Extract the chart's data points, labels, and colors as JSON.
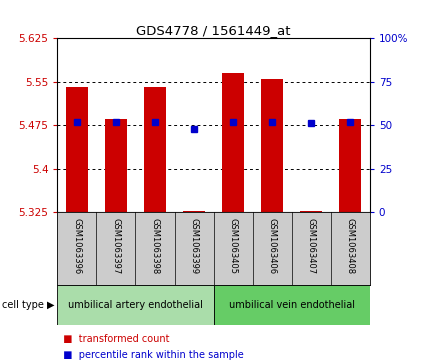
{
  "title": "GDS4778 / 1561449_at",
  "samples": [
    "GSM1063396",
    "GSM1063397",
    "GSM1063398",
    "GSM1063399",
    "GSM1063405",
    "GSM1063406",
    "GSM1063407",
    "GSM1063408"
  ],
  "red_values": [
    5.54,
    5.485,
    5.54,
    5.327,
    5.565,
    5.555,
    5.327,
    5.485
  ],
  "blue_percentile": [
    52,
    52,
    52,
    48,
    52,
    52,
    51,
    52
  ],
  "ymin": 5.325,
  "ymax": 5.625,
  "y_ticks": [
    5.325,
    5.4,
    5.475,
    5.55,
    5.625
  ],
  "y_tick_labels": [
    "5.325",
    "5.4",
    "5.475",
    "5.55",
    "5.625"
  ],
  "right_ticks": [
    0,
    25,
    50,
    75,
    100
  ],
  "right_tick_labels": [
    "0",
    "25",
    "50",
    "75",
    "100%"
  ],
  "cell_type_labels": [
    "umbilical artery endothelial",
    "umbilical vein endothelial"
  ],
  "bar_color": "#cc0000",
  "dot_color": "#0000cc",
  "bg_color": "#ffffff",
  "bar_width": 0.55,
  "cell_type_color1": "#aaddaa",
  "cell_type_color2": "#66cc66",
  "label_area_color": "#cccccc",
  "figsize": [
    4.25,
    3.63
  ],
  "dpi": 100
}
